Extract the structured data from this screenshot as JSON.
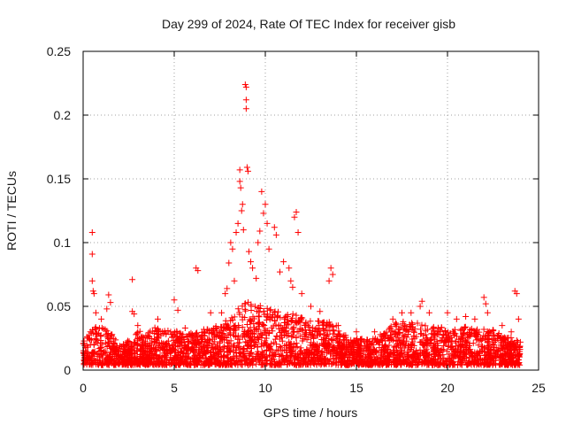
{
  "chart_data": {
    "type": "scatter",
    "title": "Day 299 of 2024, Rate Of TEC Index for receiver gisb",
    "xlabel": "GPS time / hours",
    "ylabel": "ROTI / TECUs",
    "xlim": [
      0,
      25
    ],
    "ylim": [
      0,
      0.25
    ],
    "xticks": [
      0,
      5,
      10,
      15,
      20,
      25
    ],
    "yticks": [
      0,
      0.05,
      0.1,
      0.15,
      0.2,
      0.25
    ],
    "xtick_labels": [
      "0",
      "5",
      "10",
      "15",
      "20",
      "25"
    ],
    "ytick_labels": [
      "0",
      "0.05",
      "0.1",
      "0.15",
      "0.2",
      "0.25"
    ],
    "grid": true,
    "marker": "+",
    "color": "#ff0000",
    "series": [
      {
        "points": [
          [
            0.3,
            0.025
          ],
          [
            0.4,
            0.03
          ],
          [
            0.5,
            0.108
          ],
          [
            0.5,
            0.091
          ],
          [
            0.5,
            0.07
          ],
          [
            0.55,
            0.062
          ],
          [
            0.6,
            0.06
          ],
          [
            0.7,
            0.045
          ],
          [
            1.0,
            0.04
          ],
          [
            1.3,
            0.048
          ],
          [
            1.4,
            0.059
          ],
          [
            1.5,
            0.053
          ],
          [
            2.7,
            0.071
          ],
          [
            2.7,
            0.046
          ],
          [
            2.8,
            0.044
          ],
          [
            3.0,
            0.035
          ],
          [
            4.1,
            0.04
          ],
          [
            5.0,
            0.055
          ],
          [
            5.2,
            0.047
          ],
          [
            5.6,
            0.033
          ],
          [
            6.2,
            0.08
          ],
          [
            6.3,
            0.078
          ],
          [
            7.0,
            0.045
          ],
          [
            7.6,
            0.045
          ],
          [
            7.8,
            0.06
          ],
          [
            7.9,
            0.064
          ],
          [
            8.0,
            0.084
          ],
          [
            8.1,
            0.1
          ],
          [
            8.2,
            0.095
          ],
          [
            8.3,
            0.07
          ],
          [
            8.4,
            0.108
          ],
          [
            8.5,
            0.115
          ],
          [
            8.6,
            0.157
          ],
          [
            8.6,
            0.148
          ],
          [
            8.65,
            0.143
          ],
          [
            8.7,
            0.125
          ],
          [
            8.75,
            0.13
          ],
          [
            8.8,
            0.11
          ],
          [
            8.9,
            0.224
          ],
          [
            8.95,
            0.222
          ],
          [
            8.95,
            0.212
          ],
          [
            8.95,
            0.205
          ],
          [
            9.0,
            0.159
          ],
          [
            9.05,
            0.156
          ],
          [
            9.1,
            0.093
          ],
          [
            9.2,
            0.085
          ],
          [
            9.3,
            0.08
          ],
          [
            9.5,
            0.072
          ],
          [
            9.6,
            0.1
          ],
          [
            9.7,
            0.109
          ],
          [
            9.8,
            0.14
          ],
          [
            9.9,
            0.123
          ],
          [
            10.0,
            0.13
          ],
          [
            10.1,
            0.115
          ],
          [
            10.2,
            0.095
          ],
          [
            10.5,
            0.112
          ],
          [
            10.6,
            0.106
          ],
          [
            10.8,
            0.077
          ],
          [
            11.0,
            0.085
          ],
          [
            11.3,
            0.08
          ],
          [
            11.4,
            0.07
          ],
          [
            11.5,
            0.065
          ],
          [
            11.6,
            0.12
          ],
          [
            11.7,
            0.124
          ],
          [
            11.8,
            0.108
          ],
          [
            12.0,
            0.06
          ],
          [
            12.5,
            0.05
          ],
          [
            13.0,
            0.046
          ],
          [
            13.5,
            0.07
          ],
          [
            13.6,
            0.08
          ],
          [
            13.7,
            0.075
          ],
          [
            14.0,
            0.035
          ],
          [
            15.0,
            0.03
          ],
          [
            16.0,
            0.03
          ],
          [
            17.0,
            0.04
          ],
          [
            17.5,
            0.045
          ],
          [
            18.0,
            0.045
          ],
          [
            18.5,
            0.05
          ],
          [
            18.6,
            0.054
          ],
          [
            19.0,
            0.045
          ],
          [
            20.0,
            0.045
          ],
          [
            20.5,
            0.04
          ],
          [
            21.0,
            0.042
          ],
          [
            21.5,
            0.04
          ],
          [
            22.0,
            0.057
          ],
          [
            22.1,
            0.052
          ],
          [
            22.2,
            0.045
          ],
          [
            23.0,
            0.035
          ],
          [
            23.5,
            0.03
          ],
          [
            23.7,
            0.062
          ],
          [
            23.8,
            0.06
          ],
          [
            23.9,
            0.04
          ],
          [
            24.0,
            0.022
          ]
        ]
      }
    ],
    "envelope": [
      [
        0.0,
        0.02
      ],
      [
        0.5,
        0.03
      ],
      [
        1.0,
        0.03
      ],
      [
        1.5,
        0.026
      ],
      [
        2.0,
        0.015
      ],
      [
        2.5,
        0.02
      ],
      [
        3.0,
        0.028
      ],
      [
        3.5,
        0.025
      ],
      [
        4.0,
        0.03
      ],
      [
        4.5,
        0.028
      ],
      [
        5.0,
        0.027
      ],
      [
        5.5,
        0.025
      ],
      [
        6.0,
        0.025
      ],
      [
        6.5,
        0.028
      ],
      [
        7.0,
        0.03
      ],
      [
        7.5,
        0.033
      ],
      [
        8.0,
        0.038
      ],
      [
        8.5,
        0.045
      ],
      [
        9.0,
        0.05
      ],
      [
        9.5,
        0.048
      ],
      [
        10.0,
        0.045
      ],
      [
        10.5,
        0.043
      ],
      [
        11.0,
        0.04
      ],
      [
        11.5,
        0.04
      ],
      [
        12.0,
        0.038
      ],
      [
        12.5,
        0.035
      ],
      [
        13.0,
        0.035
      ],
      [
        13.5,
        0.035
      ],
      [
        14.0,
        0.03
      ],
      [
        14.5,
        0.022
      ],
      [
        15.0,
        0.022
      ],
      [
        15.5,
        0.02
      ],
      [
        16.0,
        0.022
      ],
      [
        16.5,
        0.025
      ],
      [
        17.0,
        0.032
      ],
      [
        17.5,
        0.036
      ],
      [
        18.0,
        0.034
      ],
      [
        18.5,
        0.033
      ],
      [
        19.0,
        0.03
      ],
      [
        19.5,
        0.03
      ],
      [
        20.0,
        0.03
      ],
      [
        20.5,
        0.028
      ],
      [
        21.0,
        0.03
      ],
      [
        21.5,
        0.028
      ],
      [
        22.0,
        0.028
      ],
      [
        22.5,
        0.028
      ],
      [
        23.0,
        0.024
      ],
      [
        23.5,
        0.022
      ],
      [
        24.0,
        0.018
      ]
    ]
  }
}
